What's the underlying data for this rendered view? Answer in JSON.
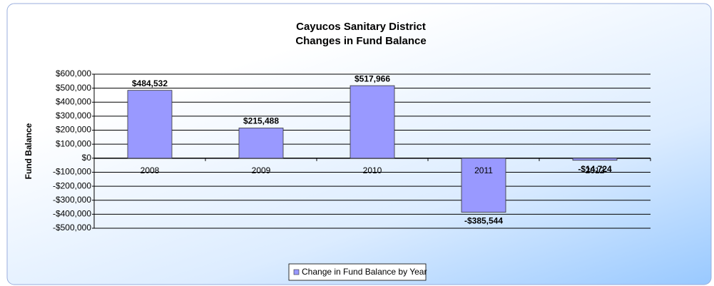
{
  "chart_data": {
    "type": "bar",
    "title": "Cayucos Sanitary District",
    "subtitle": "Changes in Fund Balance",
    "y_label": "Fund Balance",
    "categories": [
      "2008",
      "2009",
      "2010",
      "2011",
      "2012"
    ],
    "series": [
      {
        "name": "Change in Fund Balance by Year",
        "color": "#9999ff",
        "values": [
          484532,
          215488,
          517966,
          -385544,
          -14724
        ],
        "value_labels": [
          "$484,532",
          "$215,488",
          "$517,966",
          "-$385,544",
          "-$14,724"
        ]
      }
    ],
    "ylim": [
      -500000,
      600000
    ],
    "yticks": [
      {
        "value": -500000,
        "label": "-$500,000"
      },
      {
        "value": -400000,
        "label": "-$400,000"
      },
      {
        "value": -300000,
        "label": "-$300,000"
      },
      {
        "value": -200000,
        "label": "-$200,000"
      },
      {
        "value": -100000,
        "label": "-$100,000"
      },
      {
        "value": 0,
        "label": "$0"
      },
      {
        "value": 100000,
        "label": "$100,000"
      },
      {
        "value": 200000,
        "label": "$200,000"
      },
      {
        "value": 300000,
        "label": "$300,000"
      },
      {
        "value": 400000,
        "label": "$400,000"
      },
      {
        "value": 500000,
        "label": "$500,000"
      },
      {
        "value": 600000,
        "label": "$600,000"
      }
    ],
    "grid": true,
    "legend": "bottom"
  }
}
